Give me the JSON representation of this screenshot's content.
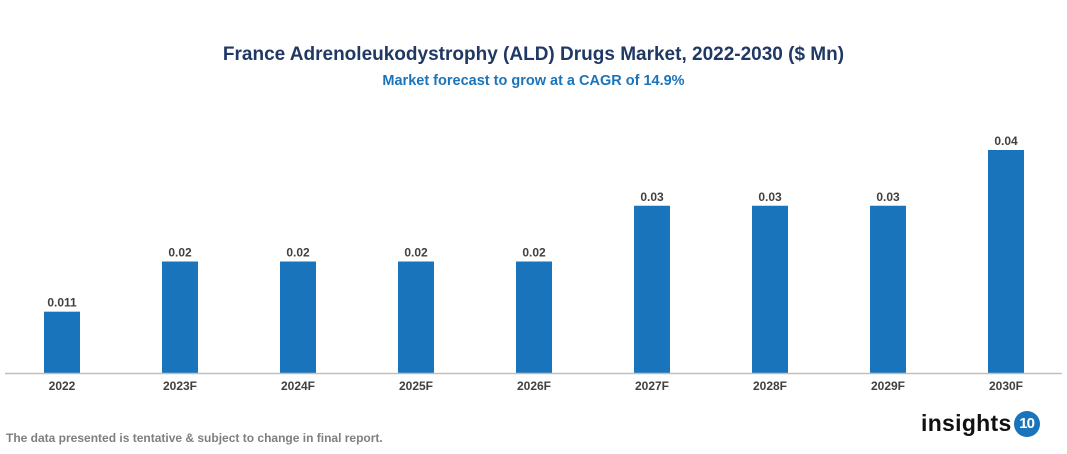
{
  "chart_data": {
    "type": "bar",
    "title": "France Adrenoleukodystrophy (ALD) Drugs Market, 2022-2030 ($ Mn)",
    "subtitle": "Market forecast to grow at a CAGR of 14.9%",
    "categories": [
      "2022",
      "2023F",
      "2024F",
      "2025F",
      "2026F",
      "2027F",
      "2028F",
      "2029F",
      "2030F"
    ],
    "values": [
      0.011,
      0.02,
      0.02,
      0.02,
      0.02,
      0.03,
      0.03,
      0.03,
      0.04
    ],
    "labels": [
      "0.011",
      "0.02",
      "0.02",
      "0.02",
      "0.02",
      "0.03",
      "0.03",
      "0.03",
      "0.04"
    ],
    "xlabel": "",
    "ylabel": "",
    "ylim": [
      0,
      0.04
    ],
    "grid": false,
    "bar_color": "#1a74bb"
  },
  "footnote": "The data presented is tentative & subject to change in final report.",
  "logo": {
    "text": "insights",
    "badge": "10"
  }
}
